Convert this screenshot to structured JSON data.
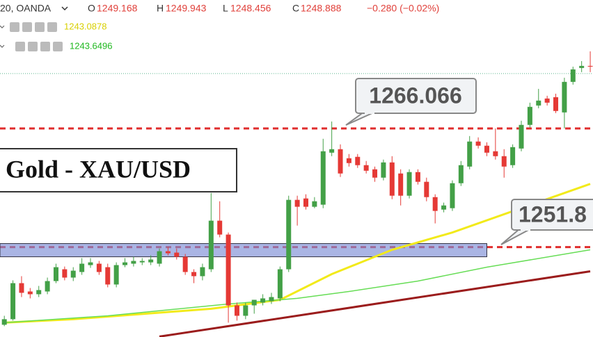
{
  "header": {
    "symbol": "20, OANDA",
    "ohlc": [
      {
        "key": "O",
        "value": "1249.168"
      },
      {
        "key": "H",
        "value": "1249.943"
      },
      {
        "key": "L",
        "value": "1248.456"
      },
      {
        "key": "C",
        "value": "1248.888"
      }
    ],
    "change": "−0.280 (−0.02%)",
    "indicators": [
      {
        "value": "1243.0878",
        "color": "#d8d000"
      },
      {
        "value": "1243.6496",
        "color": "#1fb81f"
      }
    ]
  },
  "chart_data": {
    "type": "candlestick",
    "title": "Gold - XAU/USD",
    "categories": [
      null,
      null,
      null,
      null,
      null,
      null,
      null,
      null,
      null,
      null,
      null,
      null,
      null,
      null,
      null,
      null,
      null,
      null,
      null,
      null,
      null,
      null,
      null,
      null,
      null,
      null,
      null,
      null,
      null,
      null,
      null,
      null,
      null,
      null,
      null,
      null,
      null,
      null,
      null,
      null,
      null,
      null,
      null,
      null,
      null,
      null,
      null,
      null,
      null,
      null,
      null,
      null,
      null,
      null,
      null,
      null,
      null,
      null,
      null,
      null,
      null,
      null,
      null,
      null,
      null,
      null,
      null,
      null,
      null
    ],
    "open": [
      1242.47,
      1243.14,
      1247.47,
      1246.47,
      1246.14,
      1246.47,
      1247.72,
      1249.14,
      1248.14,
      1248.81,
      1249.64,
      1249.81,
      1249.39,
      1247.31,
      1249.64,
      1249.81,
      1249.97,
      1249.97,
      1249.81,
      1251.31,
      1251.14,
      1250.64,
      1248.81,
      1248.31,
      1249.14,
      1254.98,
      1253.31,
      1244.8,
      1243.55,
      1244.8,
      1245.14,
      1245.3,
      1245.64,
      1249.14,
      1257.48,
      1257.65,
      1256.65,
      1256.9,
      1263.15,
      1263.57,
      1262.48,
      1262.65,
      1261.65,
      1261.15,
      1260.15,
      1261.98,
      1260.65,
      1257.98,
      1260.82,
      1259.65,
      1257.81,
      1256.31,
      1256.48,
      1259.48,
      1261.48,
      1264.49,
      1263.99,
      1263.32,
      1262.73,
      1261.65,
      1263.65,
      1266.49,
      1268.82,
      1269.66,
      1269.82,
      1267.99,
      1271.66,
      1273.33,
      1273.58
    ],
    "high": [
      1243.55,
      1247.81,
      1248.31,
      1246.89,
      1247.14,
      1248.14,
      1249.81,
      1249.47,
      1249.39,
      1250.48,
      1250.48,
      1250.14,
      1249.81,
      1249.97,
      1250.48,
      1250.64,
      1250.48,
      1250.81,
      1251.64,
      1251.81,
      1251.64,
      1250.98,
      1249.14,
      1249.81,
      1258.31,
      1257.31,
      1253.56,
      1245.14,
      1245.14,
      1245.47,
      1246.14,
      1246.31,
      1249.47,
      1257.98,
      1257.98,
      1258.15,
      1257.81,
      1264.82,
      1266.9,
      1264.15,
      1262.99,
      1262.99,
      1262.15,
      1261.48,
      1262.32,
      1262.73,
      1261.15,
      1261.15,
      1261.15,
      1260.15,
      1258.15,
      1257.15,
      1259.82,
      1262.15,
      1265.15,
      1264.99,
      1264.4,
      1266.07,
      1263.57,
      1264.15,
      1266.99,
      1269.16,
      1270.82,
      1269.99,
      1270.24,
      1272.16,
      1273.49,
      1274.16,
      1275.33
    ],
    "low": [
      1242.3,
      1242.97,
      1245.8,
      1245.64,
      1245.8,
      1246.14,
      1247.47,
      1247.81,
      1247.72,
      1248.47,
      1249.31,
      1248.47,
      1246.97,
      1246.97,
      1249.39,
      1249.47,
      1249.64,
      1249.64,
      1249.47,
      1250.81,
      1250.31,
      1248.47,
      1247.47,
      1247.81,
      1248.81,
      1252.98,
      1242.72,
      1242.97,
      1243.14,
      1243.8,
      1244.8,
      1244.97,
      1245.3,
      1248.81,
      1254.39,
      1256.31,
      1256.48,
      1256.48,
      1262.73,
      1260.23,
      1261.48,
      1261.32,
      1260.65,
      1259.65,
      1259.82,
      1257.56,
      1256.81,
      1257.65,
      1259.32,
      1257.31,
      1254.65,
      1255.98,
      1256.15,
      1259.15,
      1261.15,
      1263.65,
      1262.73,
      1262.32,
      1260.15,
      1261.32,
      1263.32,
      1266.15,
      1268.49,
      1268.82,
      1267.91,
      1266.07,
      1271.33,
      1272.83,
      1272.83
    ],
    "close": [
      1243.14,
      1247.47,
      1246.31,
      1246.14,
      1246.64,
      1247.72,
      1249.39,
      1248.14,
      1248.97,
      1249.81,
      1249.97,
      1248.81,
      1247.31,
      1249.64,
      1249.97,
      1250.14,
      1250.14,
      1250.31,
      1251.31,
      1251.06,
      1250.64,
      1248.81,
      1248.31,
      1249.39,
      1254.98,
      1253.31,
      1244.8,
      1243.55,
      1244.8,
      1245.47,
      1245.64,
      1245.8,
      1249.14,
      1257.48,
      1256.65,
      1256.65,
      1257.31,
      1263.32,
      1263.57,
      1260.65,
      1261.9,
      1261.65,
      1260.98,
      1260.15,
      1261.98,
      1257.98,
      1257.98,
      1260.82,
      1259.65,
      1257.81,
      1256.15,
      1256.81,
      1259.48,
      1261.65,
      1264.49,
      1263.99,
      1263.15,
      1262.73,
      1261.48,
      1263.82,
      1266.49,
      1268.66,
      1269.41,
      1269.16,
      1268.16,
      1271.66,
      1273.16,
      1273.58,
      1273.49
    ],
    "up_color": "#43a047",
    "down_color": "#e53935",
    "ylim": [
      1241.0,
      1281.5
    ],
    "lines": [
      {
        "color": "#f2ea1a",
        "width": 3,
        "x": [
          0,
          8,
          24,
          32,
          38,
          45,
          52,
          60,
          68
        ],
        "values": [
          1242.72,
          1243.14,
          1244.39,
          1245.47,
          1248.56,
          1251.48,
          1253.56,
          1256.48,
          1259.4
        ]
      },
      {
        "color": "#66dd55",
        "width": 1.5,
        "x": [
          0,
          12,
          26,
          34,
          40,
          48,
          56,
          68
        ],
        "values": [
          1242.72,
          1243.55,
          1244.97,
          1245.64,
          1246.47,
          1247.72,
          1249.39,
          1251.48
        ]
      },
      {
        "color": "#9b1c1c",
        "width": 3,
        "x": [
          18,
          68
        ],
        "values": [
          1241.05,
          1248.89
        ]
      }
    ],
    "levels": [
      1266.066,
      1251.8
    ],
    "level_color": "#e02d2d",
    "zone": {
      "top": 1252.23,
      "bottom": 1250.64,
      "end": 56,
      "color": "#7d8ed6"
    },
    "price_line": 1272.66,
    "price_line_color": "#5bb58f"
  }
}
